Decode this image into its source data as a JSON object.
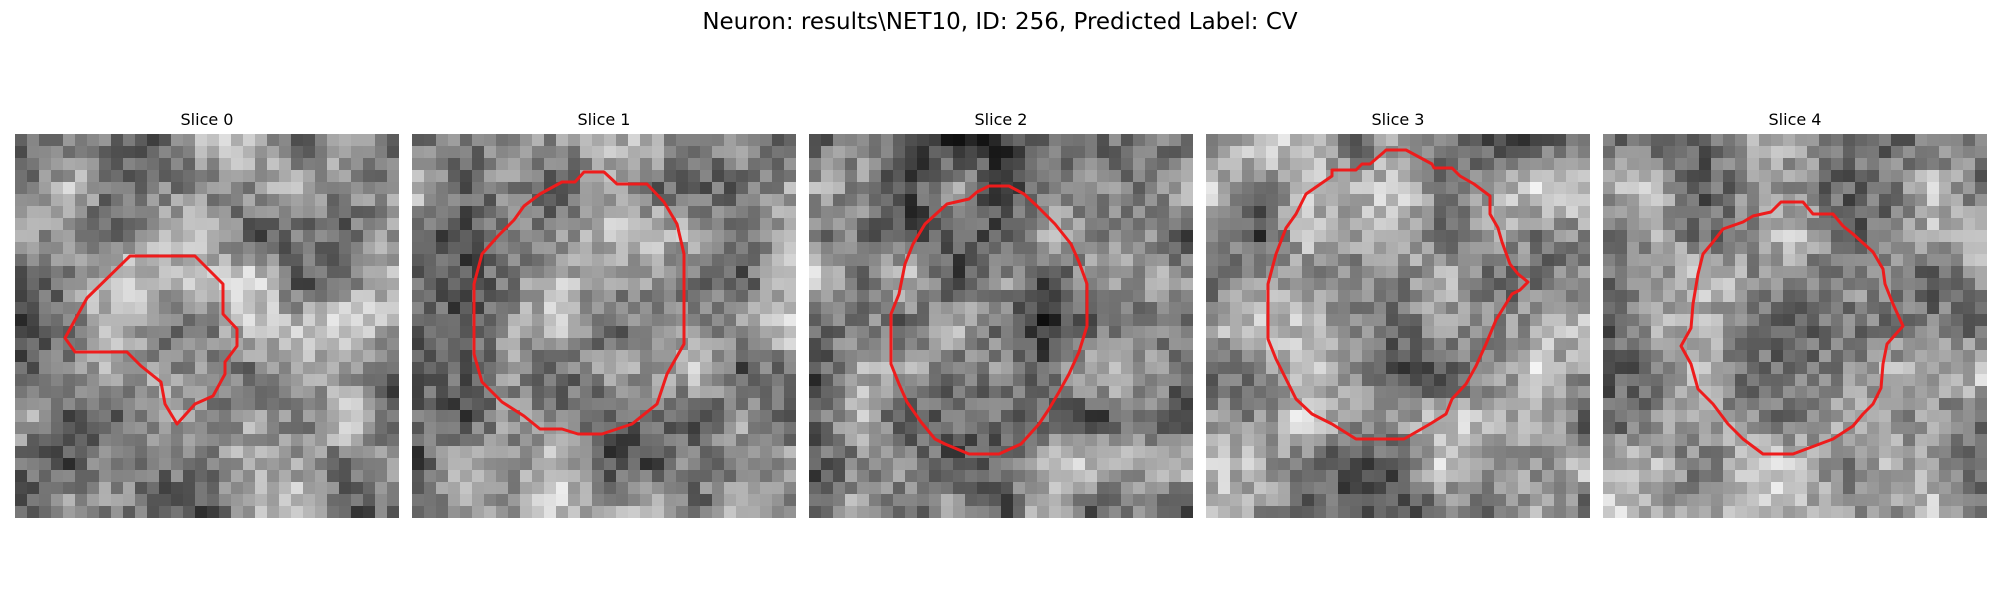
{
  "title": "Neuron: results\\NET10, ID: 256, Predicted Label: CV",
  "contour_color": "#ee1c1c",
  "slices": [
    {
      "label": "Slice 0",
      "seed": 11,
      "base": 0.58,
      "contrast": 0.3
    },
    {
      "label": "Slice 1",
      "seed": 23,
      "base": 0.55,
      "contrast": 0.28
    },
    {
      "label": "Slice 2",
      "seed": 37,
      "base": 0.5,
      "contrast": 0.32
    },
    {
      "label": "Slice 3",
      "seed": 41,
      "base": 0.55,
      "contrast": 0.3
    },
    {
      "label": "Slice 4",
      "seed": 53,
      "base": 0.6,
      "contrast": 0.28
    }
  ]
}
